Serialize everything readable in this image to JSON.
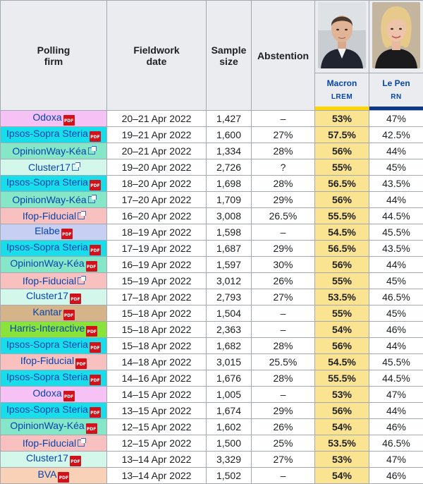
{
  "headers": {
    "polling_firm": "Polling firm",
    "fieldwork_date": "Fieldwork date",
    "sample_size": "Sample size",
    "abstention": "Abstention"
  },
  "candidates": [
    {
      "name": "Macron",
      "party": "LREM",
      "color": "#ffd600"
    },
    {
      "name": "Le Pen",
      "party": "RN",
      "color": "#0d378a"
    }
  ],
  "rows": [
    {
      "firm": "Odoxa",
      "icon": "pdf-icon",
      "bg": "#f6c2f5",
      "date": "20–21 Apr 2022",
      "sample": "1,427",
      "abstention": "–",
      "macron": "53%",
      "lepen": "47%"
    },
    {
      "firm": "Ipsos-Sopra Steria",
      "icon": "pdf-icon",
      "bg": "#18ddea",
      "date": "19–21 Apr 2022",
      "sample": "1,600",
      "abstention": "27%",
      "macron": "57.5%",
      "lepen": "42.5%"
    },
    {
      "firm": "OpinionWay-Kéa",
      "icon": "external-link-icon",
      "bg": "#85e7c7",
      "date": "20–21 Apr 2022",
      "sample": "1,334",
      "abstention": "28%",
      "macron": "56%",
      "lepen": "44%"
    },
    {
      "firm": "Cluster17",
      "icon": "external-link-icon",
      "bg": "#d4f7ec",
      "date": "19–20 Apr 2022",
      "sample": "2,726",
      "abstention": "?",
      "macron": "55%",
      "lepen": "45%"
    },
    {
      "firm": "Ipsos-Sopra Steria",
      "icon": "pdf-icon",
      "bg": "#18ddea",
      "date": "18–20 Apr 2022",
      "sample": "1,698",
      "abstention": "28%",
      "macron": "56.5%",
      "lepen": "43.5%"
    },
    {
      "firm": "OpinionWay-Kéa",
      "icon": "external-link-icon",
      "bg": "#85e7c7",
      "date": "17–20 Apr 2022",
      "sample": "1,709",
      "abstention": "29%",
      "macron": "56%",
      "lepen": "44%"
    },
    {
      "firm": "Ifop-Fiducial",
      "icon": "external-link-icon",
      "bg": "#f9c0c0",
      "date": "16–20 Apr 2022",
      "sample": "3,008",
      "abstention": "26.5%",
      "macron": "55.5%",
      "lepen": "44.5%"
    },
    {
      "firm": "Elabe",
      "icon": "pdf-icon",
      "bg": "#c7cff3",
      "date": "18–19 Apr 2022",
      "sample": "1,598",
      "abstention": "–",
      "macron": "54.5%",
      "lepen": "45.5%"
    },
    {
      "firm": "Ipsos-Sopra Steria",
      "icon": "pdf-icon",
      "bg": "#18ddea",
      "date": "17–19 Apr 2022",
      "sample": "1,687",
      "abstention": "29%",
      "macron": "56.5%",
      "lepen": "43.5%"
    },
    {
      "firm": "OpinionWay-Kéa",
      "icon": "pdf-icon",
      "bg": "#85e7c7",
      "date": "16–19 Apr 2022",
      "sample": "1,597",
      "abstention": "30%",
      "macron": "56%",
      "lepen": "44%"
    },
    {
      "firm": "Ifop-Fiducial",
      "icon": "external-link-icon",
      "bg": "#f9c0c0",
      "date": "15–19 Apr 2022",
      "sample": "3,012",
      "abstention": "26%",
      "macron": "55%",
      "lepen": "45%"
    },
    {
      "firm": "Cluster17",
      "icon": "pdf-icon",
      "bg": "#d4f7ec",
      "date": "17–18 Apr 2022",
      "sample": "2,793",
      "abstention": "27%",
      "macron": "53.5%",
      "lepen": "46.5%"
    },
    {
      "firm": "Kantar",
      "icon": "pdf-icon",
      "bg": "#d5b48a",
      "date": "15–18 Apr 2022",
      "sample": "1,504",
      "abstention": "–",
      "macron": "55%",
      "lepen": "45%"
    },
    {
      "firm": "Harris-Interactive",
      "icon": "pdf-icon",
      "bg": "#89e33a",
      "date": "15–18 Apr 2022",
      "sample": "2,363",
      "abstention": "–",
      "macron": "54%",
      "lepen": "46%"
    },
    {
      "firm": "Ipsos-Sopra Steria",
      "icon": "pdf-icon",
      "bg": "#18ddea",
      "date": "15–18 Apr 2022",
      "sample": "1,682",
      "abstention": "28%",
      "macron": "56%",
      "lepen": "44%"
    },
    {
      "firm": "Ifop-Fiducial",
      "icon": "pdf-icon",
      "bg": "#f9c0c0",
      "date": "14–18 Apr 2022",
      "sample": "3,015",
      "abstention": "25.5%",
      "macron": "54.5%",
      "lepen": "45.5%"
    },
    {
      "firm": "Ipsos-Sopra Steria",
      "icon": "pdf-icon",
      "bg": "#18ddea",
      "date": "14–16 Apr 2022",
      "sample": "1,676",
      "abstention": "28%",
      "macron": "55.5%",
      "lepen": "44.5%"
    },
    {
      "firm": "Odoxa",
      "icon": "pdf-icon",
      "bg": "#f6c2f5",
      "date": "14–15 Apr 2022",
      "sample": "1,005",
      "abstention": "–",
      "macron": "53%",
      "lepen": "47%"
    },
    {
      "firm": "Ipsos-Sopra Steria",
      "icon": "pdf-icon",
      "bg": "#18ddea",
      "date": "13–15 Apr 2022",
      "sample": "1,674",
      "abstention": "29%",
      "macron": "56%",
      "lepen": "44%"
    },
    {
      "firm": "OpinionWay-Kéa",
      "icon": "pdf-icon",
      "bg": "#85e7c7",
      "date": "12–15 Apr 2022",
      "sample": "1,602",
      "abstention": "26%",
      "macron": "54%",
      "lepen": "46%"
    },
    {
      "firm": "Ifop-Fiducial",
      "icon": "external-link-icon",
      "bg": "#f9c0c0",
      "date": "12–15 Apr 2022",
      "sample": "1,500",
      "abstention": "25%",
      "macron": "53.5%",
      "lepen": "46.5%"
    },
    {
      "firm": "Cluster17",
      "icon": "pdf-icon",
      "bg": "#d4f7ec",
      "date": "13–14 Apr 2022",
      "sample": "3,329",
      "abstention": "27%",
      "macron": "53%",
      "lepen": "47%"
    },
    {
      "firm": "BVA",
      "icon": "pdf-icon",
      "bg": "#f8d1b6",
      "date": "13–14 Apr 2022",
      "sample": "1,502",
      "abstention": "–",
      "macron": "54%",
      "lepen": "46%"
    }
  ]
}
